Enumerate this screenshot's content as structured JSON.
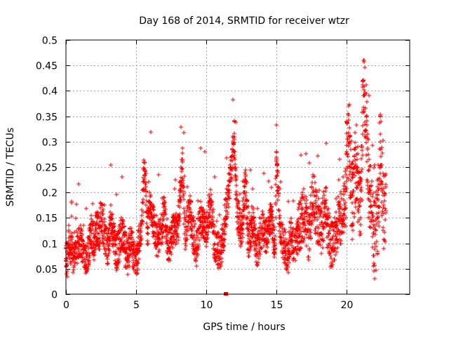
{
  "chart_data": {
    "type": "scatter",
    "title": "Day 168 of 2014, SRMTID for receiver wtzr",
    "xlabel": "GPS time / hours",
    "ylabel": "SRMTID / TECUs",
    "xlim": [
      0,
      24.5
    ],
    "ylim": [
      0,
      0.5
    ],
    "x_ticks": [
      "0",
      "5",
      "10",
      "15",
      "20"
    ],
    "x_tick_values": [
      0,
      5,
      10,
      15,
      20
    ],
    "y_ticks": [
      "0",
      "0.05",
      "0.1",
      "0.15",
      "0.2",
      "0.25",
      "0.3",
      "0.35",
      "0.4",
      "0.45",
      "0.5"
    ],
    "y_tick_values": [
      0,
      0.05,
      0.1,
      0.15,
      0.2,
      0.25,
      0.3,
      0.35,
      0.4,
      0.45,
      0.5
    ],
    "grid": true,
    "marker": "+",
    "color": "#ff0000",
    "series": [
      {
        "name": "SRMTID",
        "points_description": "dense time series of several thousand plus markers, sampled below (hours, TECU)",
        "x": [
          0.0,
          0.1,
          0.2,
          0.3,
          0.4,
          0.5,
          0.7,
          0.9,
          1.0,
          1.2,
          1.4,
          1.6,
          1.8,
          2.0,
          2.2,
          2.4,
          2.5,
          2.7,
          3.0,
          3.2,
          3.4,
          3.6,
          3.8,
          4.0,
          4.2,
          4.4,
          4.6,
          4.8,
          5.0,
          5.2,
          5.4,
          5.6,
          5.8,
          6.0,
          6.2,
          6.5,
          6.8,
          7.0,
          7.3,
          7.6,
          8.0,
          8.3,
          8.5,
          8.8,
          9.0,
          9.3,
          9.6,
          10.0,
          10.3,
          10.6,
          11.0,
          11.3,
          11.6,
          12.0,
          12.2,
          12.5,
          12.8,
          13.0,
          13.3,
          13.6,
          14.0,
          14.3,
          14.6,
          14.9,
          15.0,
          15.2,
          15.5,
          15.8,
          16.0,
          16.3,
          16.6,
          17.0,
          17.3,
          17.6,
          17.9,
          18.2,
          18.5,
          18.8,
          19.0,
          19.3,
          19.6,
          19.9,
          20.0,
          20.2,
          20.4,
          20.6,
          20.8,
          21.0,
          21.2,
          21.4,
          21.6,
          21.8,
          22.0,
          22.2,
          22.4,
          22.6,
          22.8
        ],
        "y": [
          0.09,
          0.06,
          0.11,
          0.08,
          0.12,
          0.07,
          0.1,
          0.09,
          0.11,
          0.08,
          0.06,
          0.09,
          0.12,
          0.1,
          0.14,
          0.11,
          0.16,
          0.12,
          0.09,
          0.15,
          0.11,
          0.08,
          0.1,
          0.13,
          0.09,
          0.07,
          0.11,
          0.08,
          0.06,
          0.1,
          0.14,
          0.26,
          0.12,
          0.18,
          0.15,
          0.1,
          0.13,
          0.16,
          0.09,
          0.12,
          0.14,
          0.26,
          0.11,
          0.17,
          0.13,
          0.09,
          0.15,
          0.12,
          0.18,
          0.1,
          0.08,
          0.14,
          0.2,
          0.31,
          0.16,
          0.12,
          0.22,
          0.1,
          0.15,
          0.08,
          0.13,
          0.11,
          0.16,
          0.09,
          0.28,
          0.14,
          0.1,
          0.07,
          0.12,
          0.09,
          0.13,
          0.16,
          0.11,
          0.2,
          0.15,
          0.12,
          0.18,
          0.1,
          0.09,
          0.13,
          0.15,
          0.18,
          0.28,
          0.3,
          0.18,
          0.25,
          0.22,
          0.15,
          0.42,
          0.35,
          0.2,
          0.16,
          0.1,
          0.15,
          0.3,
          0.17,
          0.16
        ]
      }
    ]
  }
}
